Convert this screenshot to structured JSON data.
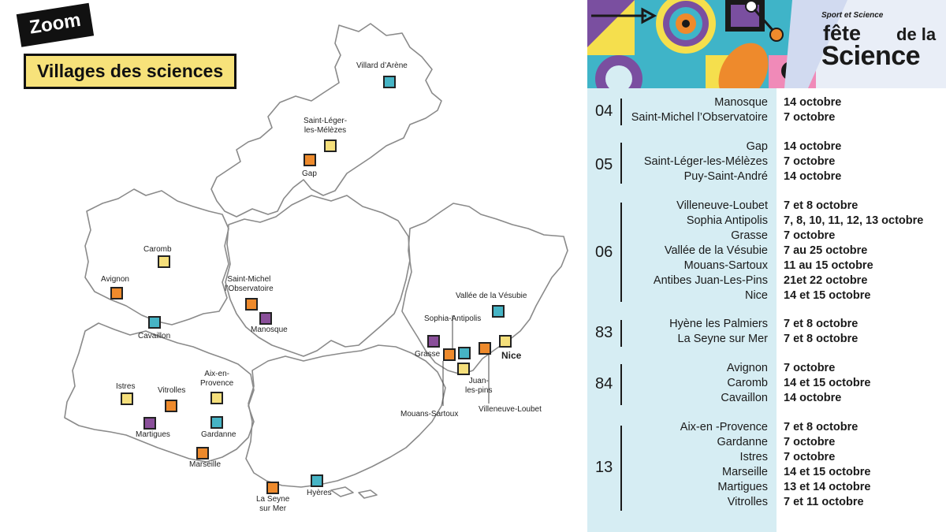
{
  "header": {
    "zoom_tag": "Zoom",
    "title": "Villages des sciences"
  },
  "brand": {
    "subtitle": "Sport et Science",
    "fete": "fête",
    "dela": "de la",
    "science": "Science"
  },
  "legend_colors": {
    "yellow": "#f5df7b",
    "orange": "#ee8a2c",
    "teal": "#46b4c5",
    "purple": "#8a4f9a"
  },
  "map": {
    "places": [
      {
        "id": "villard",
        "label": "Villard d’Arène"
      },
      {
        "id": "saint-leger",
        "label": "Saint-Léger-\nles-Mélèzes"
      },
      {
        "id": "gap",
        "label": "Gap"
      },
      {
        "id": "caromb",
        "label": "Caromb"
      },
      {
        "id": "avignon",
        "label": "Avignon"
      },
      {
        "id": "cavaillon",
        "label": "Cavaillon"
      },
      {
        "id": "saint-michel",
        "label": "Saint-Michel\nl’Observatoire"
      },
      {
        "id": "manosque",
        "label": "Manosque"
      },
      {
        "id": "vesubie",
        "label": "Vallée de la Vésubie"
      },
      {
        "id": "sophia",
        "label": "Sophia-Antipolis"
      },
      {
        "id": "grasse",
        "label": "Grasse"
      },
      {
        "id": "nice",
        "label": "Nice"
      },
      {
        "id": "juan",
        "label": "Juan-\nles-pins"
      },
      {
        "id": "mouans",
        "label": "Mouans-Sartoux"
      },
      {
        "id": "villeneuve",
        "label": "Villeneuve-Loubet"
      },
      {
        "id": "istres",
        "label": "Istres"
      },
      {
        "id": "vitrolles",
        "label": "Vitrolles"
      },
      {
        "id": "aix",
        "label": "Aix-en-\nProvence"
      },
      {
        "id": "martigues",
        "label": "Martigues"
      },
      {
        "id": "gardanne",
        "label": "Gardanne"
      },
      {
        "id": "marseille",
        "label": "Marseille"
      },
      {
        "id": "seyne",
        "label": "La Seyne\nsur Mer"
      },
      {
        "id": "hyeres",
        "label": "Hyères"
      }
    ]
  },
  "schedule": [
    {
      "code": "04",
      "rows": [
        {
          "town": "Manosque",
          "date": "14 octobre"
        },
        {
          "town": "Saint-Michel l’Observatoire",
          "date": " 7 octobre"
        }
      ]
    },
    {
      "code": "05",
      "rows": [
        {
          "town": "Gap",
          "date": "14 octobre"
        },
        {
          "town": "Saint-Léger-les-Mélèzes",
          "date": "7 octobre"
        },
        {
          "town": "Puy-Saint-André",
          "date": "14 octobre"
        }
      ]
    },
    {
      "code": "06",
      "rows": [
        {
          "town": "Villeneuve-Loubet",
          "date": "7 et 8 octobre"
        },
        {
          "town": "Sophia Antipolis",
          "date": "7, 8, 10, 11, 12, 13 octobre"
        },
        {
          "town": "Grasse",
          "date": "7 octobre"
        },
        {
          "town": "Vallée de la Vésubie",
          "date": "7 au 25 octobre"
        },
        {
          "town": "Mouans-Sartoux",
          "date": "11 au 15 octobre"
        },
        {
          "town": "Antibes Juan-Les-Pins",
          "date": "21et 22 octobre"
        },
        {
          "town": "Nice",
          "date": "14 et 15 octobre"
        }
      ]
    },
    {
      "code": "83",
      "rows": [
        {
          "town": "Hyène les Palmiers",
          "date": "7 et 8 octobre"
        },
        {
          "town": "La Seyne sur Mer",
          "date": "7 et 8 octobre"
        }
      ]
    },
    {
      "code": "84",
      "rows": [
        {
          "town": "Avignon",
          "date": "7 octobre"
        },
        {
          "town": "Caromb",
          "date": "14 et 15 octobre"
        },
        {
          "town": "Cavaillon",
          "date": "14 octobre"
        }
      ]
    },
    {
      "code": "13",
      "rows": [
        {
          "town": "Aix-en -Provence",
          "date": "7 et 8 octobre"
        },
        {
          "town": "Gardanne",
          "date": "7 octobre"
        },
        {
          "town": "Istres",
          "date": "7 octobre"
        },
        {
          "town": "Marseille",
          "date": "14 et 15 octobre"
        },
        {
          "town": "Martigues",
          "date": "13 et 14 octobre"
        },
        {
          "town": "Vitrolles",
          "date": "7 et 11 octobre"
        }
      ]
    }
  ]
}
